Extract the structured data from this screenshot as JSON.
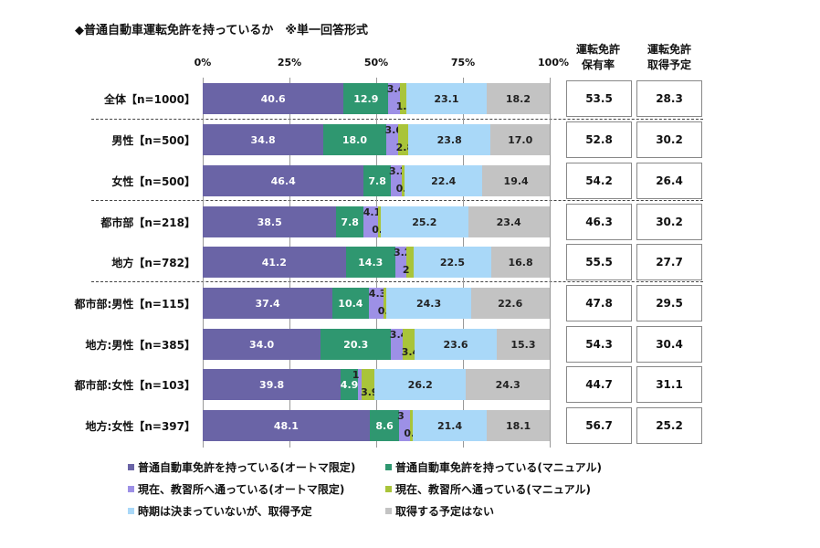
{
  "chart_data": {
    "type": "bar",
    "stacked": true,
    "orientation": "horizontal",
    "title": "◆普通自動車運転免許を持っているか　※単一回答形式",
    "xlim": [
      0,
      100
    ],
    "x_ticks": [
      "0%",
      "25%",
      "50%",
      "75%",
      "100%"
    ],
    "categories": [
      "全体【n=1000】",
      "男性【n=500】",
      "女性【n=500】",
      "都市部【n=218】",
      "地方【n=782】",
      "都市部:男性【n=115】",
      "地方:男性【n=385】",
      "都市部:女性【n=103】",
      "地方:女性【n=397】"
    ],
    "series": [
      {
        "name": "普通自動車免許を持っている(オートマ限定)",
        "color": "#6a64a6",
        "values": [
          40.6,
          34.8,
          46.4,
          38.5,
          41.2,
          37.4,
          34.0,
          39.8,
          48.1
        ]
      },
      {
        "name": "普通自動車免許を持っている(マニュアル)",
        "color": "#2f9770",
        "values": [
          12.9,
          18.0,
          7.8,
          7.8,
          14.3,
          10.4,
          20.3,
          4.9,
          8.6
        ]
      },
      {
        "name": "現在、教習所へ通っている(オートマ限定)",
        "color": "#9d90e6",
        "values": [
          3.4,
          3.6,
          3.2,
          4.1,
          3.2,
          4.3,
          3.4,
          1.0,
          3.0
        ]
      },
      {
        "name": "現在、教習所へ通っている(マニュアル)",
        "color": "#a9c43a",
        "values": [
          1.8,
          2.8,
          0.8,
          0.9,
          2.0,
          0.9,
          3.4,
          3.9,
          0.8
        ]
      },
      {
        "name": "時期は決まっていないが、取得予定",
        "color": "#a9d8f8",
        "values": [
          23.1,
          23.8,
          22.4,
          25.2,
          22.5,
          24.3,
          23.6,
          26.2,
          21.4
        ]
      },
      {
        "name": "取得する予定はない",
        "color": "#c3c3c3",
        "values": [
          18.2,
          17.0,
          19.4,
          23.4,
          16.8,
          22.6,
          15.3,
          24.3,
          18.1
        ]
      }
    ],
    "legend_position": "bottom",
    "table": {
      "headers": [
        "運転免許\n保有率",
        "運転免許\n取得予定"
      ],
      "col1": [
        "53.5",
        "52.8",
        "54.2",
        "46.3",
        "55.5",
        "47.8",
        "54.3",
        "44.7",
        "56.7"
      ],
      "col2": [
        "28.3",
        "30.2",
        "26.4",
        "30.2",
        "27.7",
        "29.5",
        "30.4",
        "31.1",
        "25.2"
      ]
    }
  }
}
